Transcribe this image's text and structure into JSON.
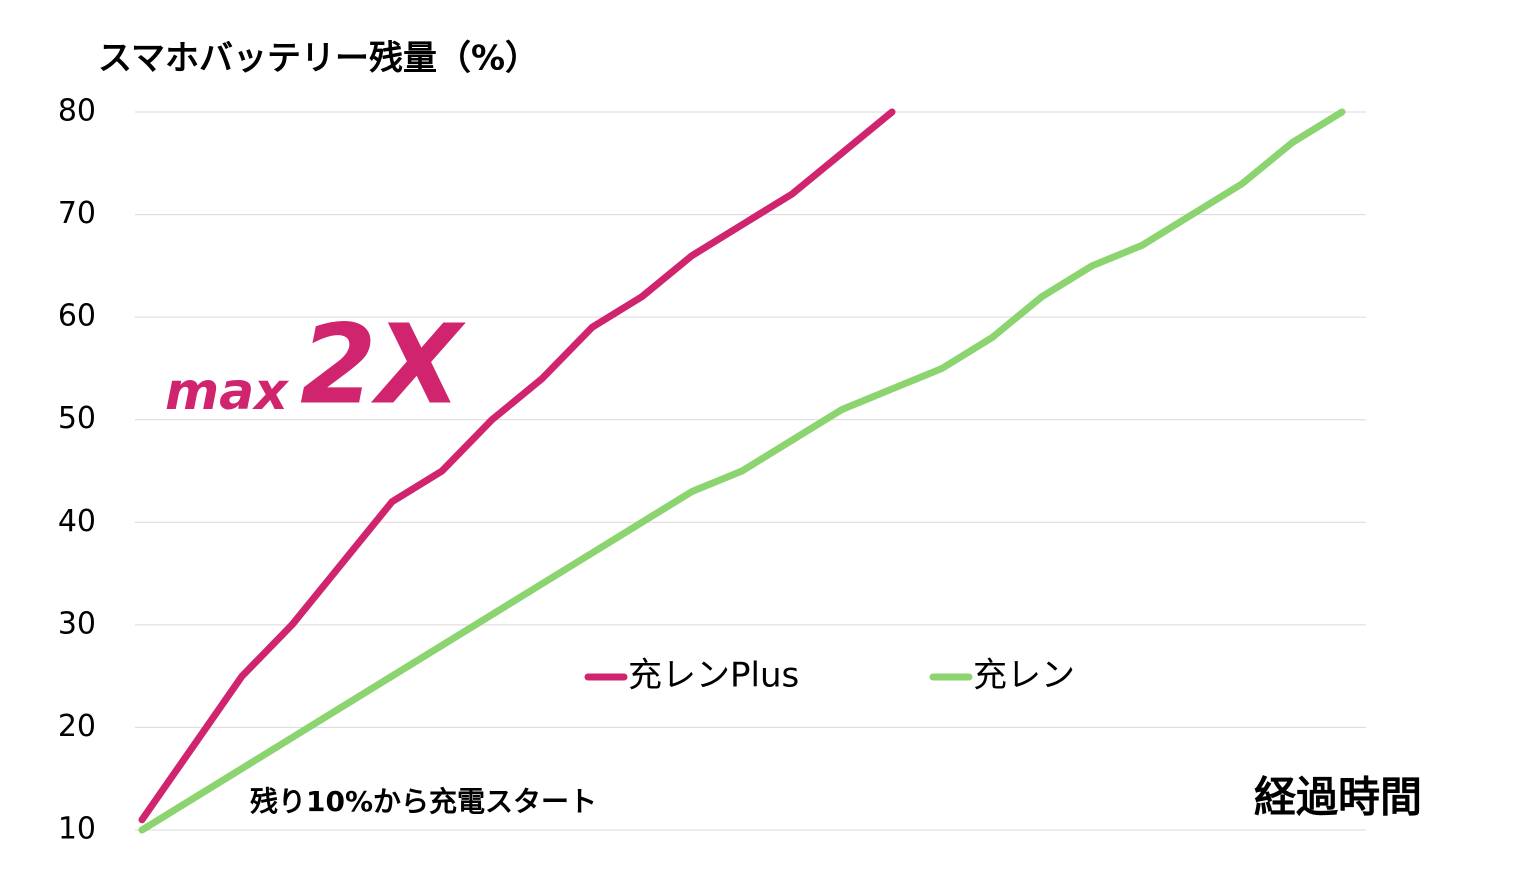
{
  "chart_data": {
    "type": "line",
    "title": "スマホバッテリー残量（%）",
    "x_label": "経過時間",
    "annotations": [
      "max",
      "2X",
      "残り10%から充電スタート"
    ],
    "categories": [
      null,
      null,
      null,
      null,
      null,
      null,
      null,
      null,
      null,
      null,
      null,
      null,
      null,
      null,
      null,
      null,
      null,
      null,
      null,
      null,
      null,
      null,
      null,
      null,
      null
    ],
    "series": [
      {
        "name": "充レンPlus",
        "color": "#d0246f",
        "values": [
          11,
          18,
          25,
          30,
          36,
          42,
          45,
          50,
          54,
          59,
          62,
          66,
          69,
          72,
          76,
          80,
          null,
          null,
          null,
          null,
          null,
          null,
          null,
          null,
          null
        ]
      },
      {
        "name": "充レン",
        "color": "#8bd46f",
        "values": [
          10,
          13,
          16,
          19,
          22,
          25,
          28,
          31,
          34,
          37,
          40,
          43,
          45,
          48,
          51,
          53,
          55,
          58,
          62,
          65,
          67,
          70,
          73,
          77,
          80
        ]
      }
    ],
    "ylim": [
      10,
      80
    ],
    "yticks": [
      10,
      20,
      30,
      40,
      50,
      60,
      70,
      80
    ],
    "grid": true,
    "legend": "center"
  }
}
